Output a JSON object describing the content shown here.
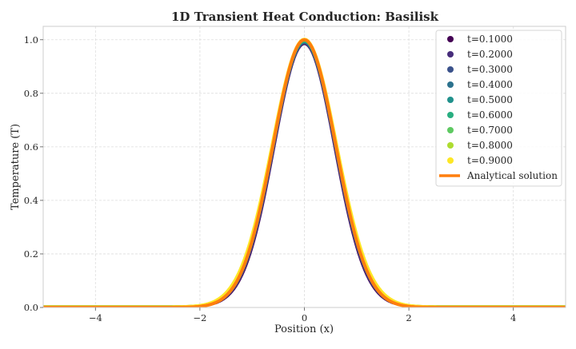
{
  "chart_data": {
    "type": "scatter",
    "title": "1D Transient Heat Conduction: Basilisk",
    "xlabel": "Position (x)",
    "ylabel": "Temperature (T)",
    "xlim": [
      -5,
      5
    ],
    "ylim": [
      0,
      1.05
    ],
    "x_ticks": [
      -4,
      -2,
      0,
      2,
      4
    ],
    "x_tick_labels": [
      "−4",
      "−2",
      "0",
      "2",
      "4"
    ],
    "y_ticks": [
      0.0,
      0.2,
      0.4,
      0.6,
      0.8,
      1.0
    ],
    "y_tick_labels": [
      "0.0",
      "0.2",
      "0.4",
      "0.6",
      "0.8",
      "1.0"
    ],
    "grid": true,
    "legend_position": "top-right",
    "profile": "gaussian",
    "series": [
      {
        "name": "t=0.1000",
        "color": "#440154",
        "peak": 0.982,
        "sigma": 0.58
      },
      {
        "name": "t=0.2000",
        "color": "#472d7b",
        "peak": 0.984,
        "sigma": 0.585
      },
      {
        "name": "t=0.3000",
        "color": "#3b528b",
        "peak": 0.986,
        "sigma": 0.59
      },
      {
        "name": "t=0.4000",
        "color": "#2c728e",
        "peak": 0.988,
        "sigma": 0.595
      },
      {
        "name": "t=0.5000",
        "color": "#21918c",
        "peak": 0.99,
        "sigma": 0.6
      },
      {
        "name": "t=0.6000",
        "color": "#28ae80",
        "peak": 0.992,
        "sigma": 0.605
      },
      {
        "name": "t=0.7000",
        "color": "#5ec962",
        "peak": 0.995,
        "sigma": 0.61
      },
      {
        "name": "t=0.8000",
        "color": "#addc30",
        "peak": 0.998,
        "sigma": 0.615
      },
      {
        "name": "t=0.9000",
        "color": "#fde725",
        "peak": 1.0,
        "sigma": 0.62
      }
    ],
    "analytical": {
      "name": "Analytical solution",
      "color": "#ff7f0e",
      "peak": 1.0,
      "sigma": 0.6
    },
    "baseline_value": 0.003
  }
}
